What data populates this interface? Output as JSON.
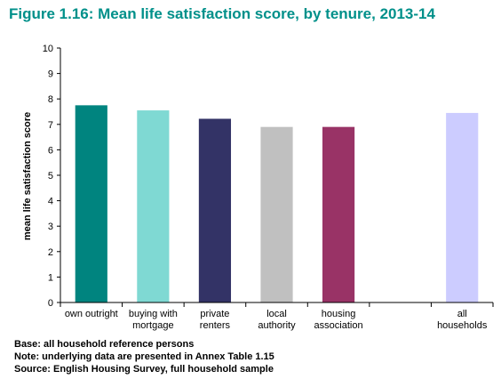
{
  "figure_title": "Figure 1.16: Mean life satisfaction score, by tenure, 2013-14",
  "colors": {
    "title": "#00908a"
  },
  "chart_data": {
    "type": "bar",
    "categories": [
      [
        "own outright"
      ],
      [
        "buying with",
        "mortgage"
      ],
      [
        "private",
        "renters"
      ],
      [
        "local",
        "authority"
      ],
      [
        "housing",
        "association"
      ],
      [
        ""
      ],
      [
        "all",
        "households"
      ]
    ],
    "values": [
      7.75,
      7.55,
      7.22,
      6.9,
      6.9,
      null,
      7.45
    ],
    "bar_colors": [
      "#00847f",
      "#7fd9d3",
      "#333366",
      "#c0c0c0",
      "#993366",
      "#ffffff",
      "#ccccff"
    ],
    "ylabel": "mean life satisfaction score",
    "ylim": [
      0,
      10
    ],
    "yticks": [
      0,
      1,
      2,
      3,
      4,
      5,
      6,
      7,
      8,
      9,
      10
    ],
    "grid": false,
    "legend": "none"
  },
  "notes": [
    "Base: all household reference persons",
    "Note: underlying data are presented in Annex Table 1.15",
    "Source: English Housing Survey, full household sample"
  ]
}
